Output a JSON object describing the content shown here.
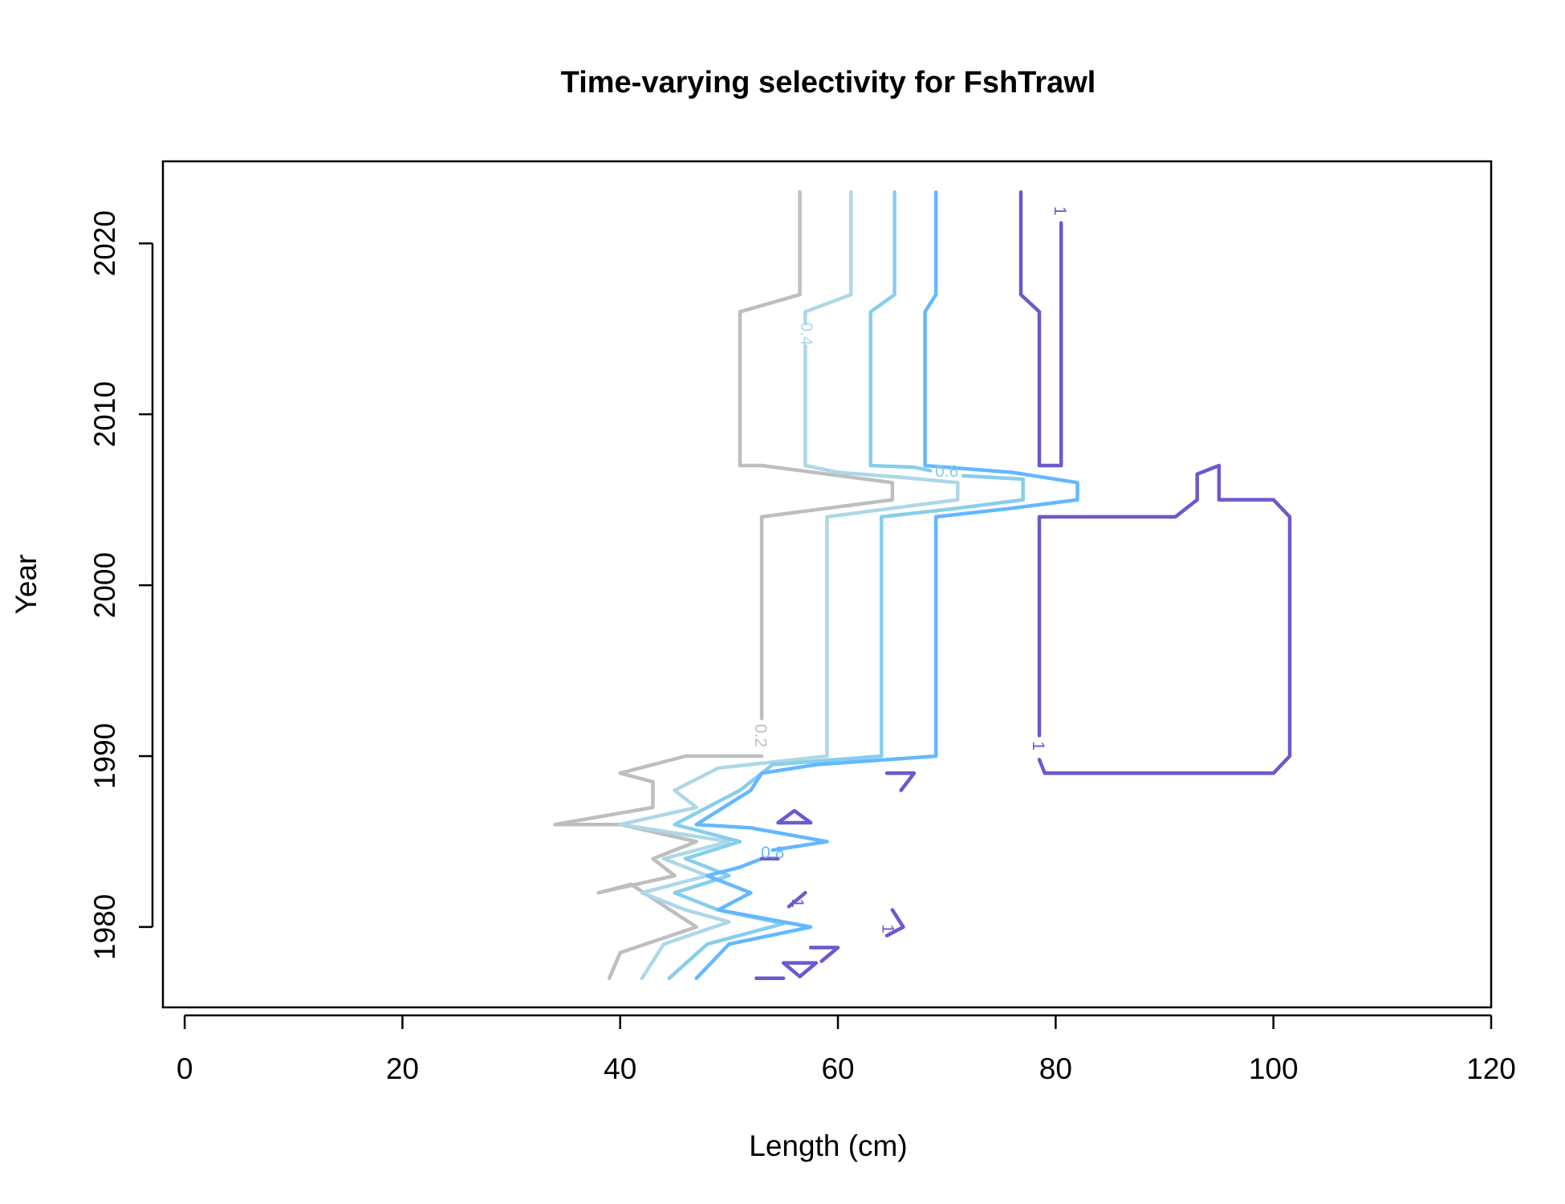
{
  "chart_data": {
    "type": "contour",
    "title": "Time-varying selectivity for FshTrawl",
    "xlabel": "Length (cm)",
    "ylabel": "Year",
    "xlim": [
      -2,
      120
    ],
    "ylim": [
      1975.3,
      2024.8
    ],
    "xticks": [
      0,
      20,
      40,
      60,
      80,
      100,
      120
    ],
    "yticks": [
      1980,
      1990,
      2000,
      2010,
      2020
    ],
    "grid": false,
    "legend": "none",
    "levels": [
      {
        "level": "0.2",
        "color": "#BEBEBE",
        "label": "0.2",
        "label_at": [
          52.8,
          1991.2
        ],
        "paths": [
          [
            [
              56.5,
              2023
            ],
            [
              56.5,
              2017
            ],
            [
              51,
              2016
            ],
            [
              51,
              2007
            ],
            [
              53,
              2007
            ],
            [
              65,
              2006
            ],
            [
              65,
              2005
            ],
            [
              53,
              2004
            ],
            [
              53,
              1992.2
            ]
          ],
          [
            [
              53,
              1990
            ],
            [
              46,
              1990
            ],
            [
              40,
              1989
            ],
            [
              43,
              1988.5
            ],
            [
              43,
              1987
            ],
            [
              34,
              1986
            ],
            [
              40,
              1986
            ],
            [
              47,
              1985
            ],
            [
              43,
              1984
            ],
            [
              45,
              1983
            ],
            [
              38,
              1982
            ],
            [
              41,
              1982.5
            ],
            [
              47,
              1980
            ],
            [
              40,
              1978.5
            ],
            [
              39,
              1977
            ]
          ]
        ]
      },
      {
        "level": "0.4",
        "color": "#ADD8E6",
        "label": "0.4",
        "label_at": [
          57,
          2014.7
        ],
        "paths": [
          [
            [
              61.2,
              2023
            ],
            [
              61.2,
              2017
            ],
            [
              57,
              2016
            ],
            [
              57,
              2015.3
            ]
          ],
          [
            [
              57,
              2014
            ],
            [
              57,
              2007
            ],
            [
              60,
              2006.6
            ],
            [
              66,
              2006.3
            ],
            [
              71,
              2006
            ],
            [
              71,
              2005
            ],
            [
              65,
              2004.5
            ],
            [
              59,
              2004
            ],
            [
              59,
              1990
            ],
            [
              49,
              1989.3
            ],
            [
              45,
              1988
            ],
            [
              47,
              1987
            ],
            [
              40,
              1986
            ],
            [
              45,
              1985.5
            ],
            [
              50,
              1985
            ],
            [
              44,
              1984
            ],
            [
              48,
              1983
            ],
            [
              42,
              1982
            ],
            [
              46,
              1981
            ],
            [
              50,
              1980.3
            ],
            [
              44,
              1979
            ],
            [
              42,
              1977
            ]
          ]
        ]
      },
      {
        "level": "0.6",
        "color": "#87CEEB",
        "label": "0.6",
        "label_at": [
          70,
          2006.6
        ],
        "paths": [
          [
            [
              65.2,
              2023
            ],
            [
              65.2,
              2017
            ],
            [
              63,
              2016
            ],
            [
              63,
              2007
            ],
            [
              67,
              2006.9
            ],
            [
              68.5,
              2006.7
            ]
          ],
          [
            [
              71.5,
              2006.4
            ],
            [
              77,
              2006.2
            ],
            [
              77,
              2005
            ],
            [
              71,
              2004.5
            ],
            [
              64,
              2004
            ],
            [
              64,
              1990
            ],
            [
              54,
              1989.5
            ],
            [
              51,
              1988
            ],
            [
              48,
              1987
            ],
            [
              45,
              1986
            ],
            [
              51,
              1985
            ],
            [
              46,
              1984
            ],
            [
              50,
              1983
            ],
            [
              45,
              1982
            ],
            [
              49,
              1981
            ],
            [
              55,
              1980.2
            ],
            [
              48,
              1979
            ],
            [
              44.5,
              1977
            ]
          ]
        ]
      },
      {
        "level": "0.8",
        "color": "#63B8FF",
        "label": "0.8",
        "label_at": [
          54,
          1984.3
        ],
        "paths": [
          [
            [
              69,
              2023
            ],
            [
              69,
              2017
            ],
            [
              68,
              2016
            ],
            [
              68,
              2007
            ],
            [
              76,
              2006.6
            ],
            [
              82,
              2006
            ],
            [
              82,
              2005
            ],
            [
              76,
              2004.5
            ],
            [
              69,
              2004
            ],
            [
              69,
              1990
            ],
            [
              58,
              1989.5
            ],
            [
              53,
              1989
            ],
            [
              52,
              1988
            ],
            [
              47,
              1986
            ],
            [
              52,
              1985.8
            ],
            [
              59,
              1985
            ],
            [
              54,
              1984.5
            ]
          ],
          [
            [
              53,
              1984
            ],
            [
              51,
              1983.5
            ],
            [
              48,
              1983
            ],
            [
              52,
              1982
            ],
            [
              49,
              1981
            ],
            [
              57.5,
              1980
            ],
            [
              50,
              1979
            ],
            [
              47,
              1977
            ]
          ]
        ]
      },
      {
        "level": "1",
        "color": "#6A5ACD",
        "label": "1",
        "label_at": [
          80.3,
          2021.9
        ],
        "paths": [
          [
            [
              76.8,
              2023
            ],
            [
              76.8,
              2017
            ],
            [
              78.5,
              2016
            ],
            [
              78.5,
              2007
            ],
            [
              80.5,
              2007
            ],
            [
              80.5,
              2021.2
            ]
          ],
          [
            [
              78.5,
              1991.2
            ],
            [
              78.5,
              2004
            ],
            [
              91,
              2004
            ],
            [
              93,
              2005
            ],
            [
              93,
              2006.5
            ],
            [
              95,
              2007
            ],
            [
              95,
              2005
            ],
            [
              100,
              2005
            ],
            [
              101.5,
              2004
            ],
            [
              101.5,
              1990
            ],
            [
              100,
              1989
            ],
            [
              79,
              1989
            ],
            [
              78.5,
              1989.8
            ]
          ],
          [
            [
              64.5,
              1989
            ],
            [
              67,
              1989
            ],
            [
              65.8,
              1988
            ]
          ],
          [
            [
              54.5,
              1986.1
            ],
            [
              57.5,
              1986.1
            ],
            [
              56,
              1986.8
            ],
            [
              54.5,
              1986.1
            ]
          ],
          [
            [
              53,
              1984
            ],
            [
              54.5,
              1984
            ]
          ],
          [
            [
              55.5,
              1981.2
            ],
            [
              57,
              1982
            ]
          ],
          [
            [
              65,
              1981
            ],
            [
              66,
              1980
            ],
            [
              64.5,
              1979.5
            ]
          ],
          [
            [
              57.5,
              1978.8
            ],
            [
              60,
              1978.8
            ],
            [
              58.5,
              1978
            ]
          ],
          [
            [
              55,
              1977.9
            ],
            [
              58,
              1977.9
            ],
            [
              56.5,
              1977.1
            ],
            [
              55,
              1977.9
            ]
          ],
          [
            [
              52.5,
              1977
            ],
            [
              55,
              1977
            ]
          ]
        ]
      }
    ],
    "extra_labels": [
      {
        "text": "1",
        "color": "#6A5ACD",
        "at": [
          78.3,
          1990.6
        ]
      },
      {
        "text": "1",
        "color": "#6A5ACD",
        "at": [
          56.2,
          1981.4
        ]
      },
      {
        "text": "1",
        "color": "#6A5ACD",
        "at": [
          64.5,
          1979.9
        ]
      }
    ]
  }
}
